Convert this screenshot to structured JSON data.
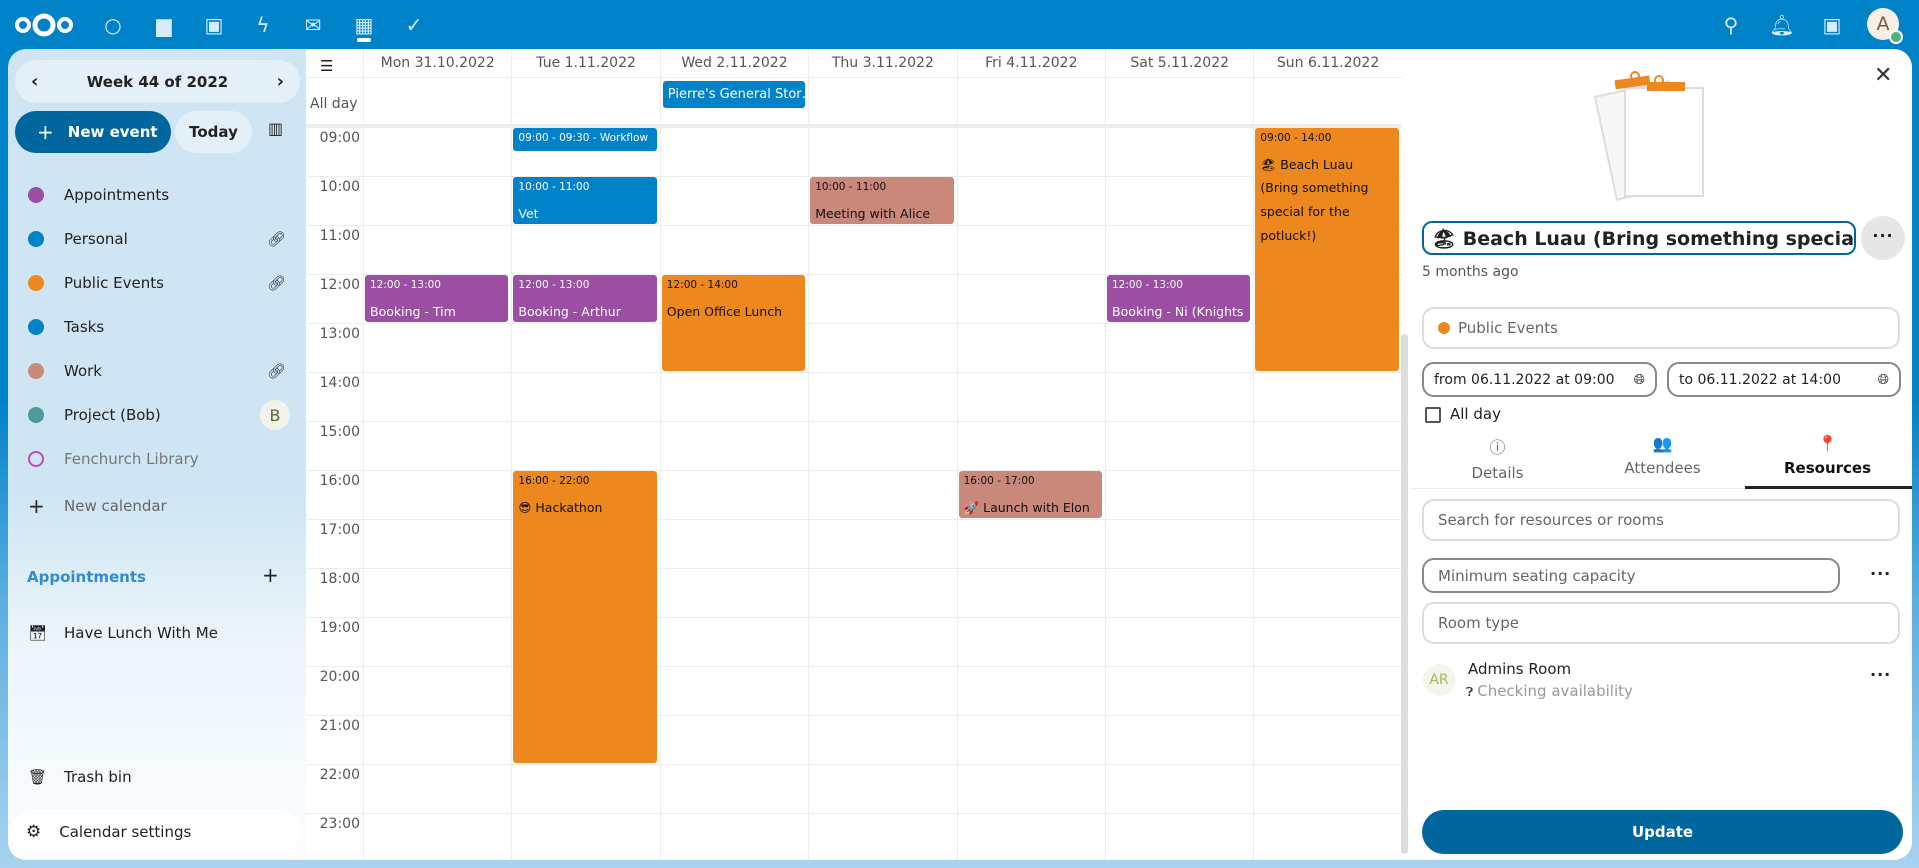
{
  "topbar": {
    "apps": [
      {
        "icon": "dashboard-icon",
        "glyph": "○"
      },
      {
        "icon": "files-icon",
        "glyph": "▆"
      },
      {
        "icon": "photos-icon",
        "glyph": "▣"
      },
      {
        "icon": "activity-icon",
        "glyph": "ϟ"
      },
      {
        "icon": "mail-icon",
        "glyph": "✉"
      },
      {
        "icon": "calendar-icon",
        "glyph": "▦"
      },
      {
        "icon": "tasks-icon",
        "glyph": "✓"
      }
    ],
    "avatar": "A",
    "brand_color": "#0082c9"
  },
  "sidebar": {
    "week": "Week 44 of 2022",
    "new_event": "New event",
    "today": "Today",
    "calendars": [
      {
        "name": "Appointments",
        "color": "#9b4fa3"
      },
      {
        "name": "Personal",
        "color": "#0082c9",
        "shared": true
      },
      {
        "name": "Public Events",
        "color": "#ec881d",
        "shared": true
      },
      {
        "name": "Tasks",
        "color": "#0082c9"
      },
      {
        "name": "Work",
        "color": "#c9887a",
        "shared": true
      },
      {
        "name": "Project (Bob)",
        "color": "#4a9ba0",
        "owner": "B"
      },
      {
        "name": "Fenchurch Library",
        "color": "#c04fb4",
        "disabled": true
      }
    ],
    "new_calendar": "New calendar",
    "appointments_header": "Appointments",
    "appointment": "Have Lunch With Me",
    "trash": "Trash bin",
    "settings": "Calendar settings"
  },
  "calendar": {
    "all_day": "All day",
    "days": [
      "Mon 31.10.2022",
      "Tue 1.11.2022",
      "Wed 2.11.2022",
      "Thu 3.11.2022",
      "Fri 4.11.2022",
      "Sat 5.11.2022",
      "Sun 6.11.2022"
    ],
    "hours": [
      "09:00",
      "10:00",
      "11:00",
      "12:00",
      "13:00",
      "14:00",
      "15:00",
      "16:00",
      "17:00",
      "18:00",
      "19:00",
      "20:00",
      "21:00",
      "22:00",
      "23:00"
    ],
    "allday_events": [
      {
        "day": 2,
        "title": "Pierre's General Stor…",
        "color": "#0082c9"
      }
    ],
    "events": [
      {
        "day": 1,
        "start": 9,
        "end": 9.5,
        "time": "09:00 - 09:30 - Workflow",
        "title": "",
        "color": "#0082c9",
        "text": "#fff"
      },
      {
        "day": 1,
        "start": 10,
        "end": 11,
        "time": "10:00 - 11:00",
        "title": "Vet",
        "color": "#0082c9",
        "text": "#fff"
      },
      {
        "day": 3,
        "start": 10,
        "end": 11,
        "time": "10:00 - 11:00",
        "title": "Meeting with Alice",
        "color": "#c9887a",
        "text": "#111"
      },
      {
        "day": 0,
        "start": 12,
        "end": 13,
        "time": "12:00 - 13:00",
        "title": "Booking - Tim (Wizard)",
        "color": "#9b4fa3",
        "text": "#fff"
      },
      {
        "day": 1,
        "start": 12,
        "end": 13,
        "time": "12:00 - 13:00",
        "title": "Booking - Arthur Dent",
        "color": "#9b4fa3",
        "text": "#fff"
      },
      {
        "day": 2,
        "start": 12,
        "end": 14,
        "time": "12:00 - 14:00",
        "title": "Open Office Lunch",
        "color": "#ec881d",
        "text": "#111"
      },
      {
        "day": 5,
        "start": 12,
        "end": 13,
        "time": "12:00 - 13:00",
        "title": "Booking - Ni (Knights",
        "color": "#9b4fa3",
        "text": "#fff"
      },
      {
        "day": 6,
        "start": 9,
        "end": 14,
        "time": "09:00 - 14:00",
        "title": "🏖 Beach Luau (Bring something special for the potluck!)",
        "color": "#ec881d",
        "text": "#111"
      },
      {
        "day": 1,
        "start": 16,
        "end": 22,
        "time": "16:00 - 22:00",
        "title": "😎 Hackathon",
        "color": "#ec881d",
        "text": "#111"
      },
      {
        "day": 4,
        "start": 16,
        "end": 17,
        "time": "16:00 - 17:00",
        "title": "🚀 Launch with Elon",
        "color": "#c9887a",
        "text": "#111"
      }
    ]
  },
  "panel": {
    "title": "🏖 Beach Luau (Bring something special for",
    "modified": "5 months ago",
    "calendar": "Public Events",
    "calendar_color": "#ec881d",
    "from": "from 06.11.2022 at 09:00",
    "to": "to 06.11.2022 at 14:00",
    "all_day": "All day",
    "tabs": [
      {
        "label": "Details",
        "icon": "info-icon",
        "glyph": "ⓘ"
      },
      {
        "label": "Attendees",
        "icon": "people-icon",
        "glyph": "👥"
      },
      {
        "label": "Resources",
        "icon": "map-marker-icon",
        "glyph": "📍",
        "active": true
      }
    ],
    "search_placeholder": "Search for resources or rooms",
    "capacity_placeholder": "Minimum seating capacity",
    "room_type_placeholder": "Room type",
    "resource": {
      "initials": "AR",
      "name": "Admins Room",
      "status": "Checking availability"
    },
    "update": "Update"
  }
}
